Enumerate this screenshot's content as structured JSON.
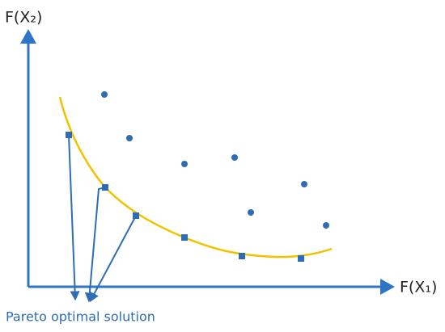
{
  "labels": {
    "y_axis": "F(X₂)",
    "x_axis": "F(X₁)",
    "annotation": "Pareto optimal solution"
  }
}
